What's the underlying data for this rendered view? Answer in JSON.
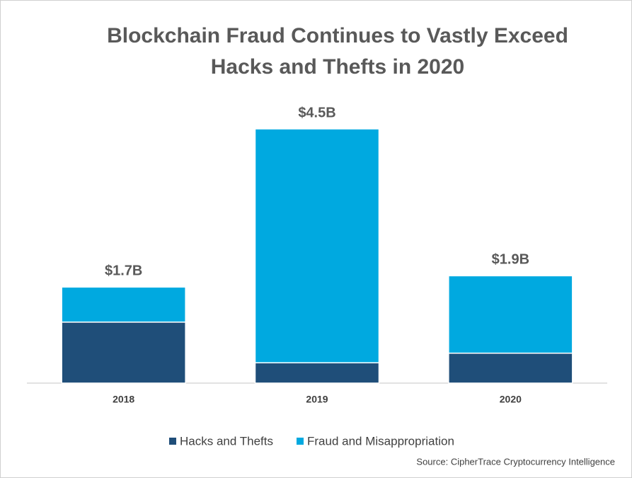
{
  "chart_data": {
    "type": "stacked-bar",
    "title": "Blockchain Fraud Continues to Vastly Exceed Hacks and Thefts in 2020",
    "categories": [
      "2018",
      "2019",
      "2020"
    ],
    "series": [
      {
        "name": "Hacks and Thefts",
        "color": "#1f4e79",
        "values": [
          1.08,
          0.36,
          0.53
        ]
      },
      {
        "name": "Fraud and Misappropriation",
        "color": "#00a9e0",
        "values": [
          0.62,
          4.14,
          1.37
        ]
      }
    ],
    "totals": {
      "values": [
        1.7,
        4.5,
        1.9
      ],
      "value_labels": [
        "$1.7B",
        "$4.5B",
        "$1.9B"
      ]
    },
    "source": "Source: CipherTrace Cryptocurrency Intelligence"
  }
}
